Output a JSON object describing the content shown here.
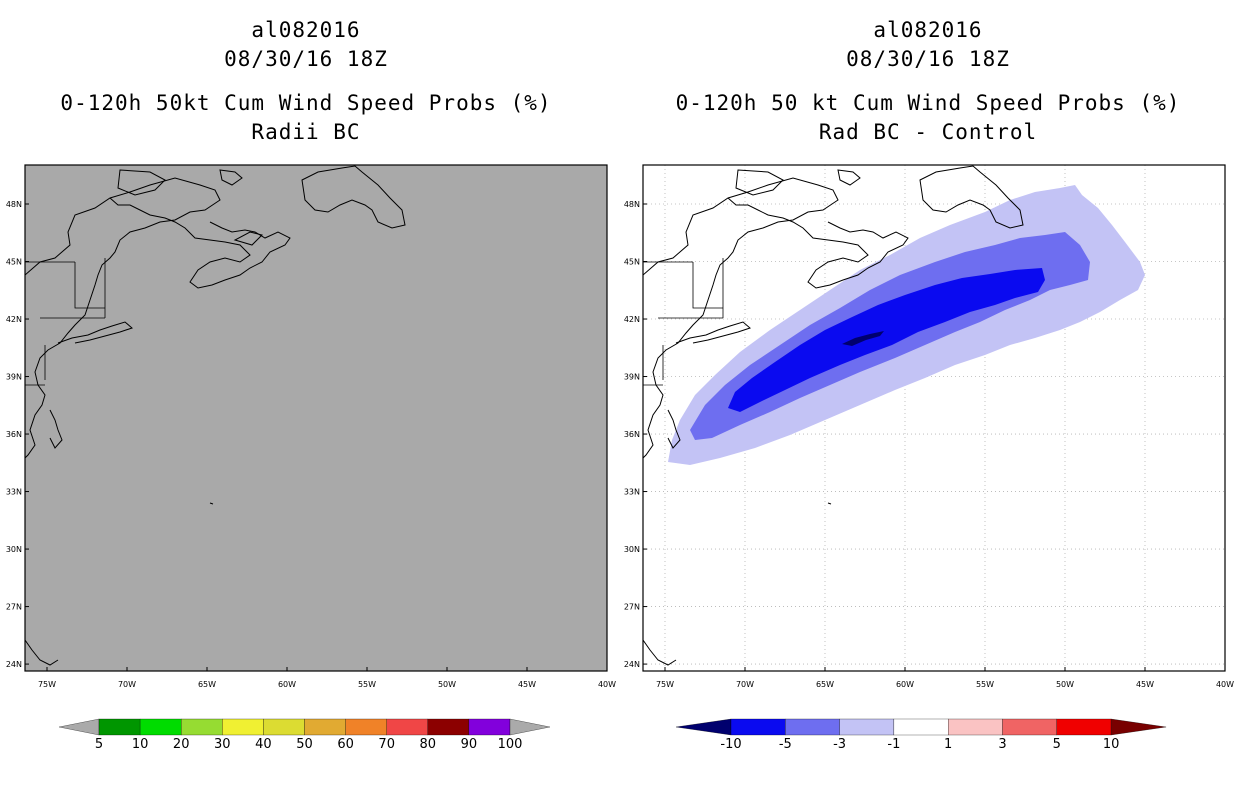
{
  "left": {
    "storm": "al082016",
    "time": "08/30/16 18Z",
    "product": "0-120h 50kt Cum Wind Speed Probs (%)",
    "subtitle": "Radii BC"
  },
  "right": {
    "storm": "al082016",
    "time": "08/30/16 18Z",
    "product": "0-120h 50 kt Cum Wind Speed Probs (%)",
    "subtitle": "Rad BC - Control"
  },
  "map": {
    "lat_labels": [
      "48N",
      "45N",
      "42N",
      "39N",
      "36N",
      "33N",
      "30N",
      "27N",
      "24N"
    ],
    "lon_labels": [
      "75W",
      "70W",
      "65W",
      "60W",
      "55W",
      "50W",
      "45W",
      "40W"
    ],
    "left_fill_color": "#a9a9a9",
    "right_grid": "dotted"
  },
  "legend_left": {
    "labels": [
      "5",
      "10",
      "20",
      "30",
      "40",
      "50",
      "60",
      "70",
      "80",
      "90",
      "100"
    ],
    "colors": [
      "#aaaaaa",
      "#009600",
      "#00dc00",
      "#96dc32",
      "#f0f032",
      "#dcdc32",
      "#e1aa32",
      "#f08228",
      "#f04646",
      "#8c0000",
      "#8200dc",
      "#aaaaaa"
    ]
  },
  "legend_right": {
    "labels": [
      "-10",
      "-5",
      "-3",
      "-1",
      "1",
      "3",
      "5",
      "10"
    ],
    "colors": [
      "#00006e",
      "#0a0af0",
      "#6e6ef0",
      "#c3c3f5",
      "#ffffff",
      "#fac3c3",
      "#f06464",
      "#f00000",
      "#780000"
    ]
  }
}
